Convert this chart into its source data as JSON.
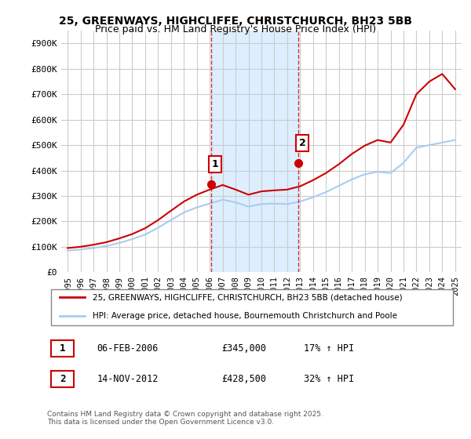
{
  "title_line1": "25, GREENWAYS, HIGHCLIFFE, CHRISTCHURCH, BH23 5BB",
  "title_line2": "Price paid vs. HM Land Registry's House Price Index (HPI)",
  "legend_label1": "25, GREENWAYS, HIGHCLIFFE, CHRISTCHURCH, BH23 5BB (detached house)",
  "legend_label2": "HPI: Average price, detached house, Bournemouth Christchurch and Poole",
  "transaction1_date": "06-FEB-2006",
  "transaction1_price": "£345,000",
  "transaction1_hpi": "17% ↑ HPI",
  "transaction2_date": "14-NOV-2012",
  "transaction2_price": "£428,500",
  "transaction2_hpi": "32% ↑ HPI",
  "footnote": "Contains HM Land Registry data © Crown copyright and database right 2025.\nThis data is licensed under the Open Government Licence v3.0.",
  "red_color": "#cc0000",
  "blue_color": "#aaccee",
  "shade_color": "#ddeeff",
  "background_color": "#ffffff",
  "grid_color": "#cccccc",
  "vline_color": "#cc0000",
  "marker1_x_year": 2006.1,
  "marker1_y": 345000,
  "marker2_x_year": 2012.87,
  "marker2_y": 428500,
  "ylim_min": 0,
  "ylim_max": 950000,
  "xlim_min": 1994.5,
  "xlim_max": 2025.5,
  "yticks": [
    0,
    100000,
    200000,
    300000,
    400000,
    500000,
    600000,
    700000,
    800000,
    900000
  ],
  "ytick_labels": [
    "£0",
    "£100K",
    "£200K",
    "£300K",
    "£400K",
    "£500K",
    "£600K",
    "£700K",
    "£800K",
    "£900K"
  ],
  "xticks": [
    1995,
    1996,
    1997,
    1998,
    1999,
    2000,
    2001,
    2002,
    2003,
    2004,
    2005,
    2006,
    2007,
    2008,
    2009,
    2010,
    2011,
    2012,
    2013,
    2014,
    2015,
    2016,
    2017,
    2018,
    2019,
    2020,
    2021,
    2022,
    2023,
    2024,
    2025
  ]
}
